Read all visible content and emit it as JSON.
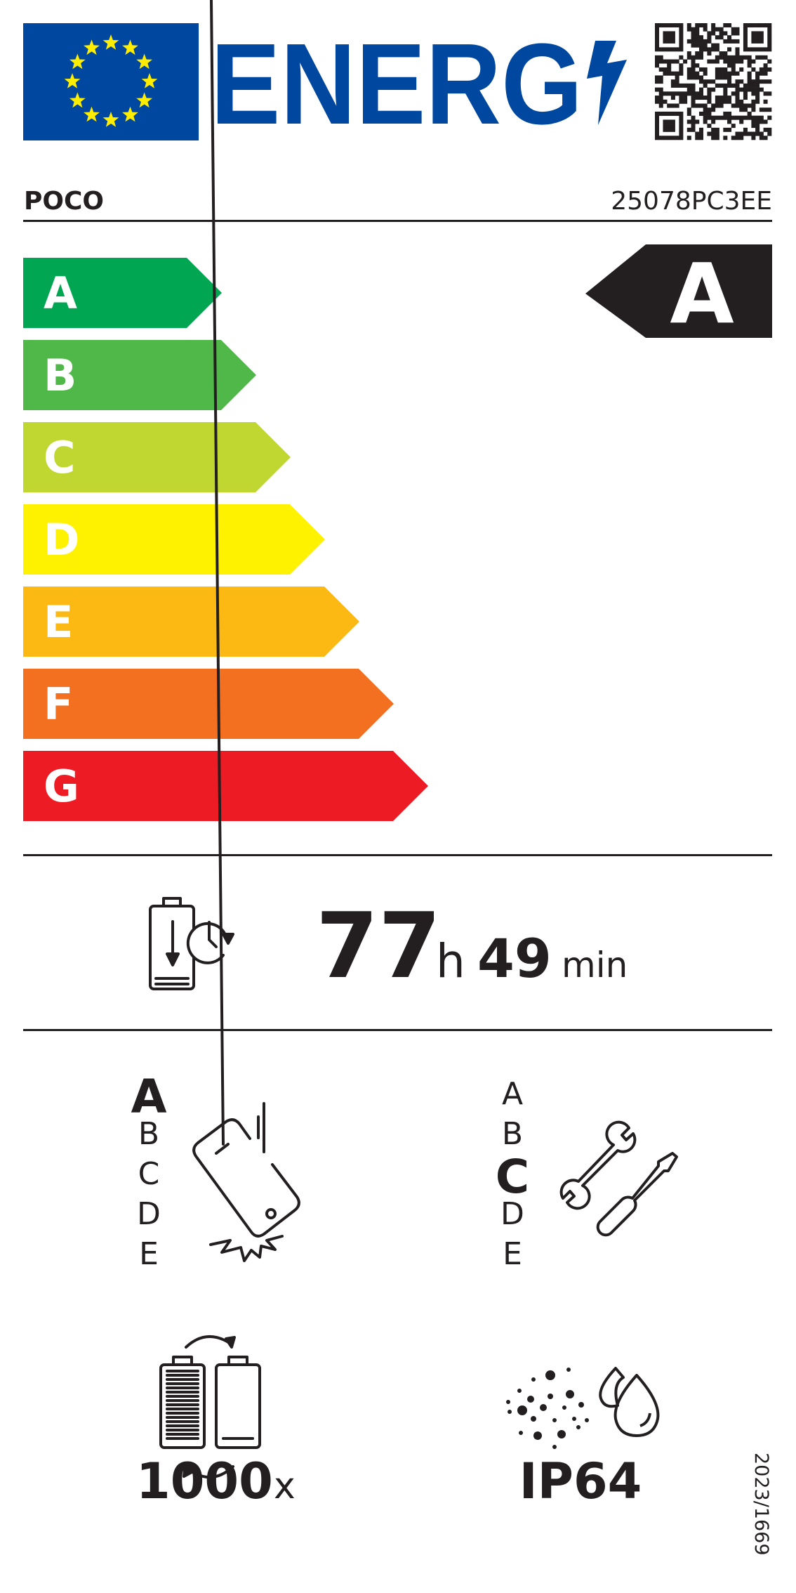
{
  "header": {
    "logo_text": "ENERG",
    "brand": "POCO",
    "model": "25078PC3EE"
  },
  "energy_scale": {
    "classes": [
      {
        "letter": "A",
        "color": "#00a651"
      },
      {
        "letter": "B",
        "color": "#50b848"
      },
      {
        "letter": "C",
        "color": "#bfd730"
      },
      {
        "letter": "D",
        "color": "#fff200"
      },
      {
        "letter": "E",
        "color": "#fdb913"
      },
      {
        "letter": "F",
        "color": "#f37021"
      },
      {
        "letter": "G",
        "color": "#ed1c24"
      }
    ],
    "rating": "A"
  },
  "battery_endurance": {
    "hours": "77",
    "hours_unit": "h",
    "minutes": "49",
    "minutes_unit": "min"
  },
  "drop_resistance": {
    "scale": [
      "A",
      "B",
      "C",
      "D",
      "E"
    ],
    "rating": "A"
  },
  "repairability": {
    "scale": [
      "A",
      "B",
      "C",
      "D",
      "E"
    ],
    "rating": "C"
  },
  "battery_cycles": {
    "value": "1000",
    "unit": "x"
  },
  "ingress_protection": {
    "value": "IP64"
  },
  "regulation": "2023/1669",
  "colors": {
    "eu_blue": "#0047a0",
    "star_yellow": "#ffed00",
    "text": "#231f20"
  }
}
